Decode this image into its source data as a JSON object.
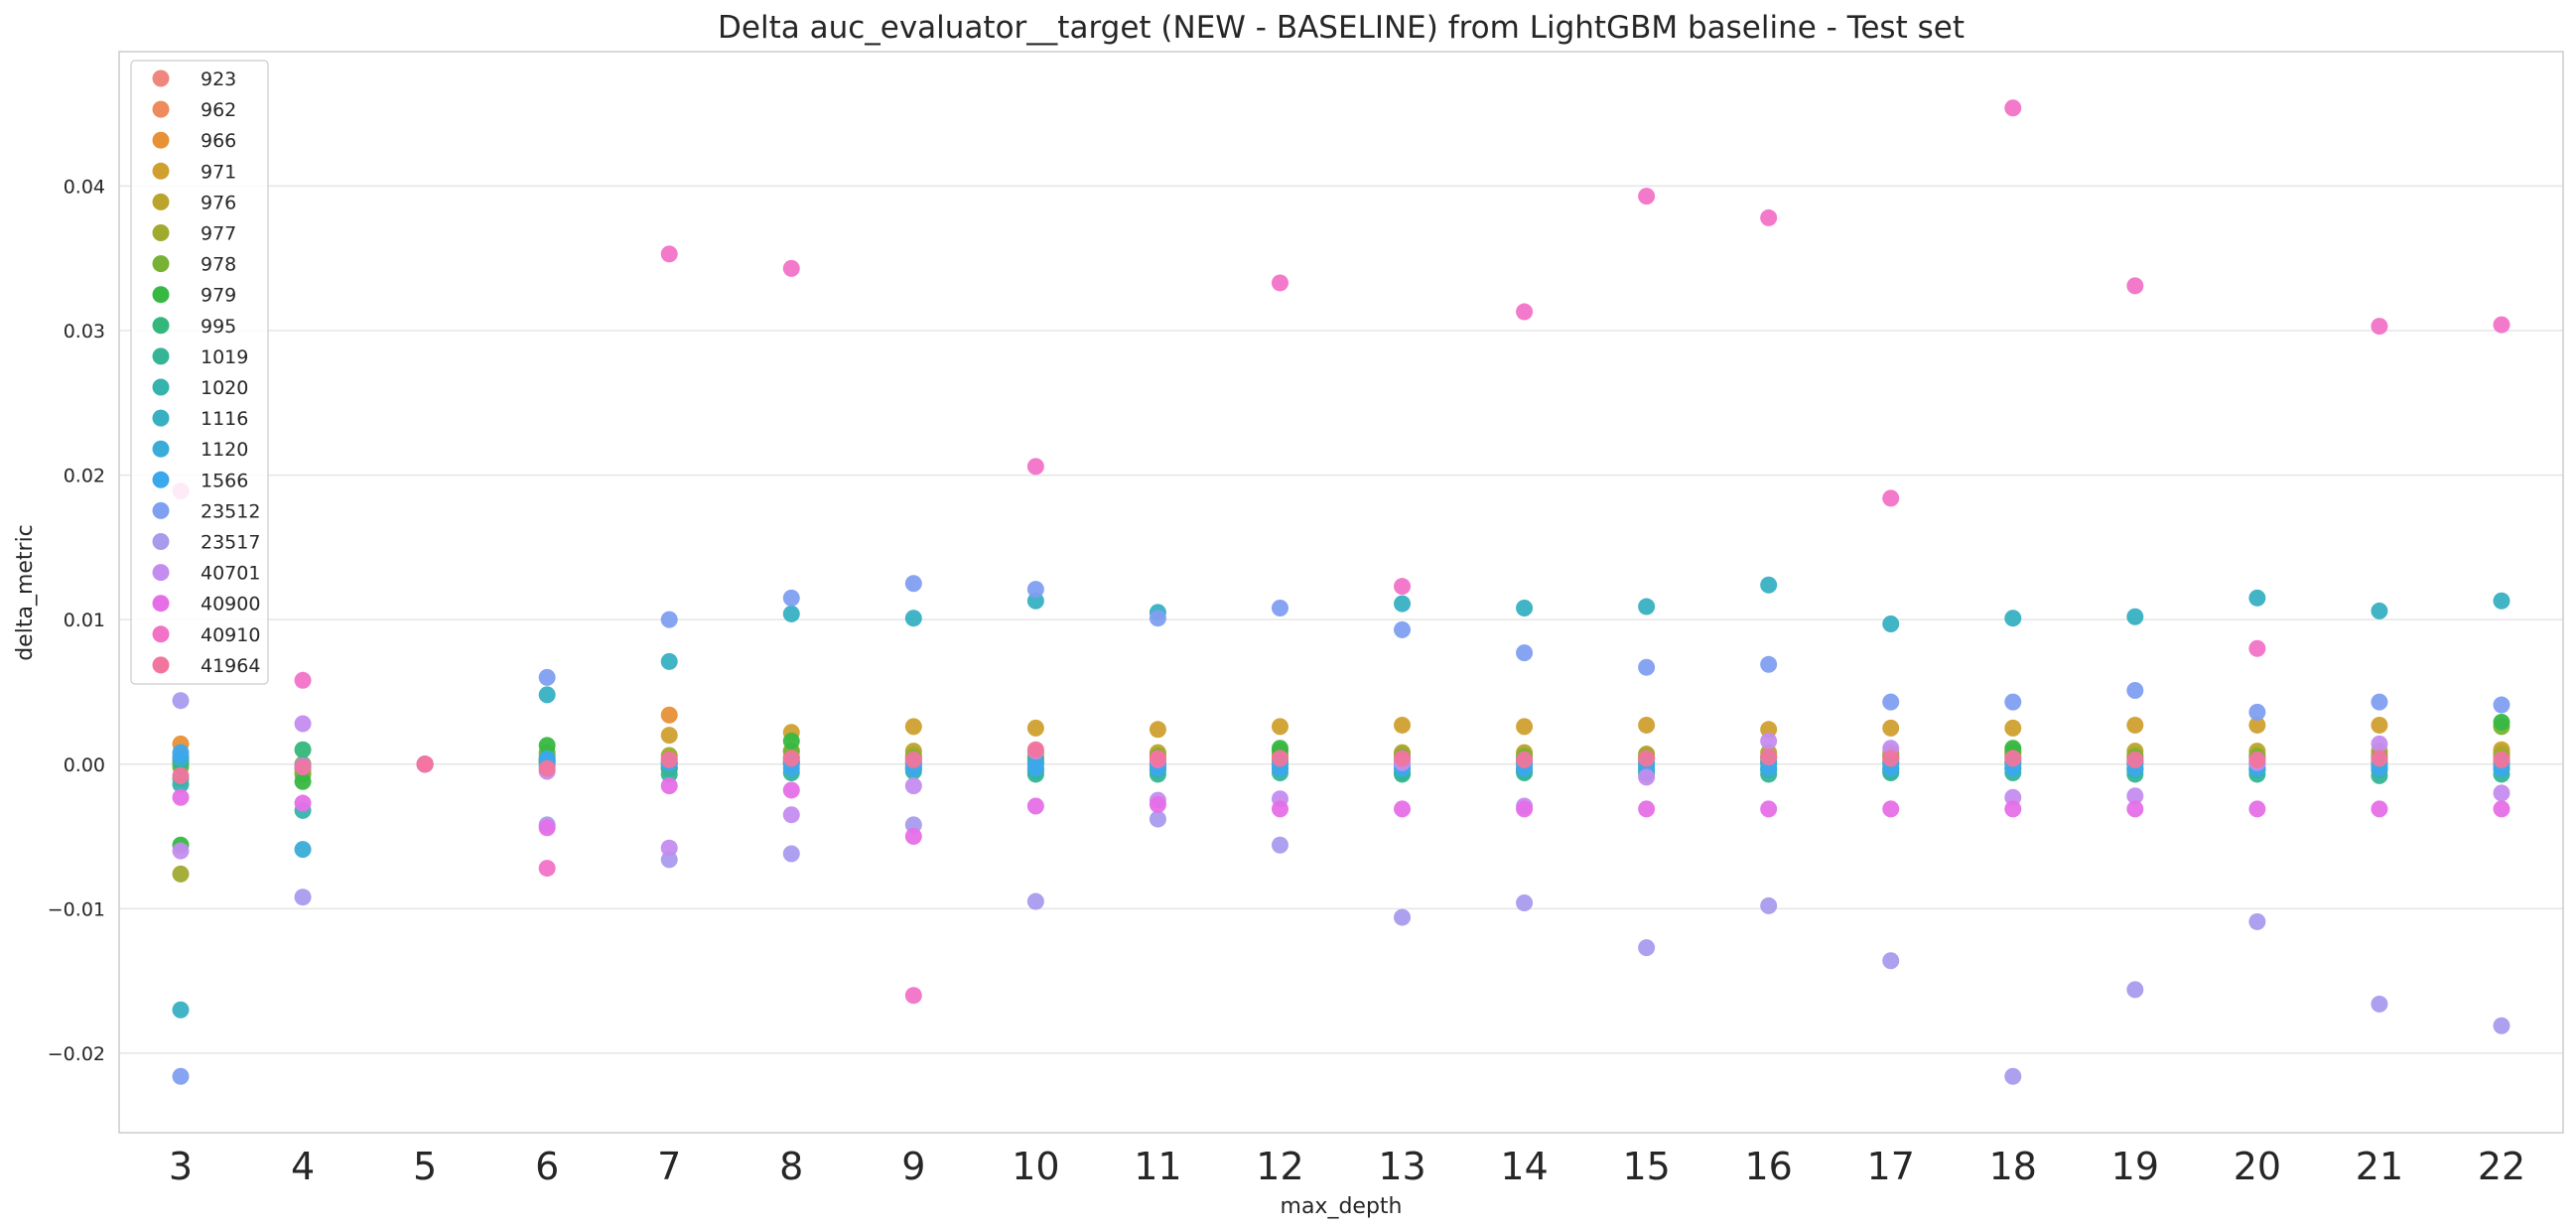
{
  "chart_data": {
    "type": "scatter",
    "title": "Delta auc_evaluator__target (NEW - BASELINE) from LightGBM baseline - Test set",
    "xlabel": "max_depth",
    "ylabel": "delta_metric",
    "categories": [
      "3",
      "4",
      "5",
      "6",
      "7",
      "8",
      "9",
      "10",
      "11",
      "12",
      "13",
      "14",
      "15",
      "16",
      "17",
      "18",
      "19",
      "20",
      "21",
      "22"
    ],
    "ylim": [
      -0.0255,
      0.0493
    ],
    "yticks": [
      {
        "value": -0.02,
        "label": "−0.02"
      },
      {
        "value": -0.01,
        "label": "−0.01"
      },
      {
        "value": 0.0,
        "label": "0.00"
      },
      {
        "value": 0.01,
        "label": "0.01"
      },
      {
        "value": 0.02,
        "label": "0.02"
      },
      {
        "value": 0.03,
        "label": "0.03"
      },
      {
        "value": 0.04,
        "label": "0.04"
      }
    ],
    "grid": "horizontal",
    "legend_position": "upper-left",
    "series": [
      {
        "name": "923",
        "color": "#f0877e",
        "values": [
          0.0003,
          -0.0002,
          0,
          0.0002,
          0.0001,
          0.0001,
          0.0001,
          0.0002,
          0.0001,
          0.0002,
          0.0001,
          0.0002,
          0.0001,
          0.0002,
          0.0001,
          0.0002,
          0.0001,
          0.0002,
          0.0001,
          0.0002
        ]
      },
      {
        "name": "962",
        "color": "#ee8a5c",
        "values": [
          0.0005,
          -0.0001,
          0,
          0.0002,
          0.0001,
          0.0002,
          0.0002,
          0.0001,
          0.0002,
          0.0001,
          0.0002,
          0.0001,
          0.0002,
          0.0001,
          0.0002,
          0.0001,
          0.0002,
          0.0001,
          0.0002,
          0.0001
        ]
      },
      {
        "name": "966",
        "color": "#e89036",
        "values": [
          0.0014,
          0.0,
          0,
          0.0005,
          0.0034,
          0.0004,
          0.0004,
          0.0004,
          0.0004,
          0.0004,
          0.0004,
          0.0004,
          0.0004,
          0.0004,
          0.0004,
          0.0004,
          0.0004,
          0.0004,
          0.0004,
          0.0004
        ]
      },
      {
        "name": "971",
        "color": "#cfa02e",
        "values": [
          0.0002,
          0.0,
          0,
          0.0002,
          0.002,
          0.0022,
          0.0026,
          0.0025,
          0.0024,
          0.0026,
          0.0027,
          0.0026,
          0.0027,
          0.0024,
          0.0025,
          0.0025,
          0.0027,
          0.0027,
          0.0027,
          0.001
        ]
      },
      {
        "name": "976",
        "color": "#bba42c",
        "values": [
          0.0004,
          -0.0002,
          0,
          0.0003,
          0.0004,
          0.0009,
          0.0009,
          0.0008,
          0.0008,
          0.0009,
          0.0008,
          0.0008,
          0.0007,
          0.0008,
          0.0008,
          0.0009,
          0.0009,
          0.0009,
          0.0009,
          0.0008
        ]
      },
      {
        "name": "977",
        "color": "#a0aa2f",
        "values": [
          -0.0076,
          -0.0004,
          0,
          0.0002,
          0.0006,
          0.0005,
          0.0006,
          0.0005,
          0.0006,
          0.0006,
          0.0007,
          0.0006,
          0.0006,
          0.0005,
          0.0006,
          0.0006,
          0.0006,
          0.0006,
          0.0006,
          0.0006
        ]
      },
      {
        "name": "978",
        "color": "#78b234",
        "values": [
          -0.0002,
          -0.0007,
          0,
          0.0008,
          -0.0002,
          0.0009,
          0.0004,
          0.0004,
          0.0005,
          0.0009,
          0.0005,
          0.0005,
          0.0004,
          0.0005,
          0.0005,
          0.0008,
          0.0005,
          0.0005,
          0.0005,
          0.0026
        ]
      },
      {
        "name": "979",
        "color": "#37b842",
        "values": [
          -0.0056,
          -0.0012,
          0,
          0.0013,
          -0.0003,
          0.0016,
          -0.0002,
          -0.0005,
          -0.0004,
          0.0011,
          -0.0006,
          -0.0005,
          -0.0005,
          -0.0004,
          -0.0005,
          0.0011,
          -0.0004,
          -0.0004,
          -0.0004,
          0.0029
        ]
      },
      {
        "name": "995",
        "color": "#33b77a",
        "values": [
          0.0001,
          0.001,
          0,
          0.0001,
          -0.0003,
          0.0001,
          -0.0003,
          -0.0003,
          -0.0003,
          -0.0003,
          -0.0003,
          -0.0003,
          -0.0003,
          -0.0003,
          -0.0003,
          -0.0003,
          -0.0003,
          -0.0003,
          -0.0003,
          -0.0003
        ]
      },
      {
        "name": "1019",
        "color": "#35b596",
        "values": [
          -0.001,
          -0.0002,
          0,
          0.0002,
          -0.0007,
          -0.0006,
          -0.0005,
          -0.0007,
          -0.0007,
          -0.0006,
          -0.0007,
          -0.0006,
          -0.0007,
          -0.0007,
          -0.0006,
          -0.0006,
          -0.0007,
          -0.0007,
          -0.0008,
          -0.0007
        ]
      },
      {
        "name": "1020",
        "color": "#36b3ad",
        "values": [
          -0.0014,
          -0.0032,
          0,
          0.0004,
          0.0,
          0.0,
          0.0,
          0.0,
          -0.0001,
          0.0,
          0.0,
          0.0,
          -0.0001,
          0.0,
          0.0,
          0.0,
          0.0,
          0.0,
          -0.0001,
          0.0
        ]
      },
      {
        "name": "1116",
        "color": "#37b0c2",
        "values": [
          -0.017,
          -0.0002,
          0,
          0.0048,
          0.0071,
          0.0104,
          0.0101,
          0.0113,
          0.0105,
          0.0003,
          0.0111,
          0.0108,
          0.0109,
          0.0124,
          0.0097,
          0.0101,
          0.0102,
          0.0115,
          0.0106,
          0.0113
        ]
      },
      {
        "name": "1120",
        "color": "#39acd8",
        "values": [
          0.0004,
          -0.0059,
          0,
          -0.0001,
          0.0001,
          0.0002,
          0.0001,
          0.0002,
          0.0001,
          0.0002,
          0.0001,
          0.0002,
          0.0001,
          0.0002,
          0.0001,
          0.0002,
          0.0001,
          0.0002,
          0.0001,
          0.0002
        ]
      },
      {
        "name": "1566",
        "color": "#3ca8ec",
        "values": [
          0.0008,
          -0.0001,
          0,
          0.0003,
          0.0001,
          -0.0003,
          -0.0003,
          -0.0003,
          -0.0003,
          -0.0003,
          -0.0003,
          -0.0003,
          -0.0003,
          -0.0003,
          -0.0003,
          -0.0003,
          -0.0003,
          -0.0003,
          -0.0003,
          -0.0003
        ]
      },
      {
        "name": "23512",
        "color": "#7f9ff0",
        "values": [
          -0.0216,
          -0.0001,
          0,
          0.006,
          0.01,
          0.0115,
          0.0125,
          0.0121,
          0.0101,
          0.0108,
          0.0093,
          0.0077,
          0.0067,
          0.0069,
          0.0043,
          0.0043,
          0.0051,
          0.0036,
          0.0043,
          0.0041
        ]
      },
      {
        "name": "23517",
        "color": "#a89bee",
        "values": [
          0.0044,
          -0.0092,
          0,
          -0.0042,
          -0.0066,
          -0.0062,
          -0.0042,
          -0.0095,
          -0.0038,
          -0.0056,
          -0.0106,
          -0.0096,
          -0.0127,
          -0.0098,
          -0.0136,
          -0.0216,
          -0.0156,
          -0.0109,
          -0.0166,
          -0.0181
        ]
      },
      {
        "name": "40701",
        "color": "#c48cef",
        "values": [
          -0.006,
          0.0028,
          0,
          -0.0005,
          -0.0058,
          -0.0035,
          -0.0015,
          0.0009,
          -0.0025,
          -0.0024,
          0.0001,
          -0.0029,
          -0.0009,
          0.0016,
          0.0011,
          -0.0023,
          -0.0022,
          0.0001,
          0.0014,
          -0.002
        ]
      },
      {
        "name": "40900",
        "color": "#e66fe8",
        "values": [
          -0.0023,
          -0.0027,
          0,
          -0.0044,
          -0.0015,
          -0.0018,
          -0.005,
          -0.0029,
          -0.0028,
          -0.0031,
          -0.0031,
          -0.0031,
          -0.0031,
          -0.0031,
          -0.0031,
          -0.0031,
          -0.0031,
          -0.0031,
          -0.0031,
          -0.0031
        ]
      },
      {
        "name": "40910",
        "color": "#f272c8",
        "values": [
          0.0189,
          0.0058,
          0,
          -0.0072,
          0.0353,
          0.0343,
          -0.016,
          0.0206,
          0.0003,
          0.0333,
          0.0123,
          0.0313,
          0.0393,
          0.0378,
          0.0184,
          0.0454,
          0.0331,
          0.008,
          0.0303,
          0.0304
        ]
      },
      {
        "name": "41964",
        "color": "#f2759d",
        "values": [
          -0.0008,
          -0.0002,
          0,
          -0.0003,
          0.0003,
          0.0004,
          0.0003,
          0.001,
          0.0004,
          0.0004,
          0.0004,
          0.0003,
          0.0004,
          0.0005,
          0.0004,
          0.0004,
          0.0003,
          0.0003,
          0.0004,
          0.0003
        ]
      }
    ]
  }
}
